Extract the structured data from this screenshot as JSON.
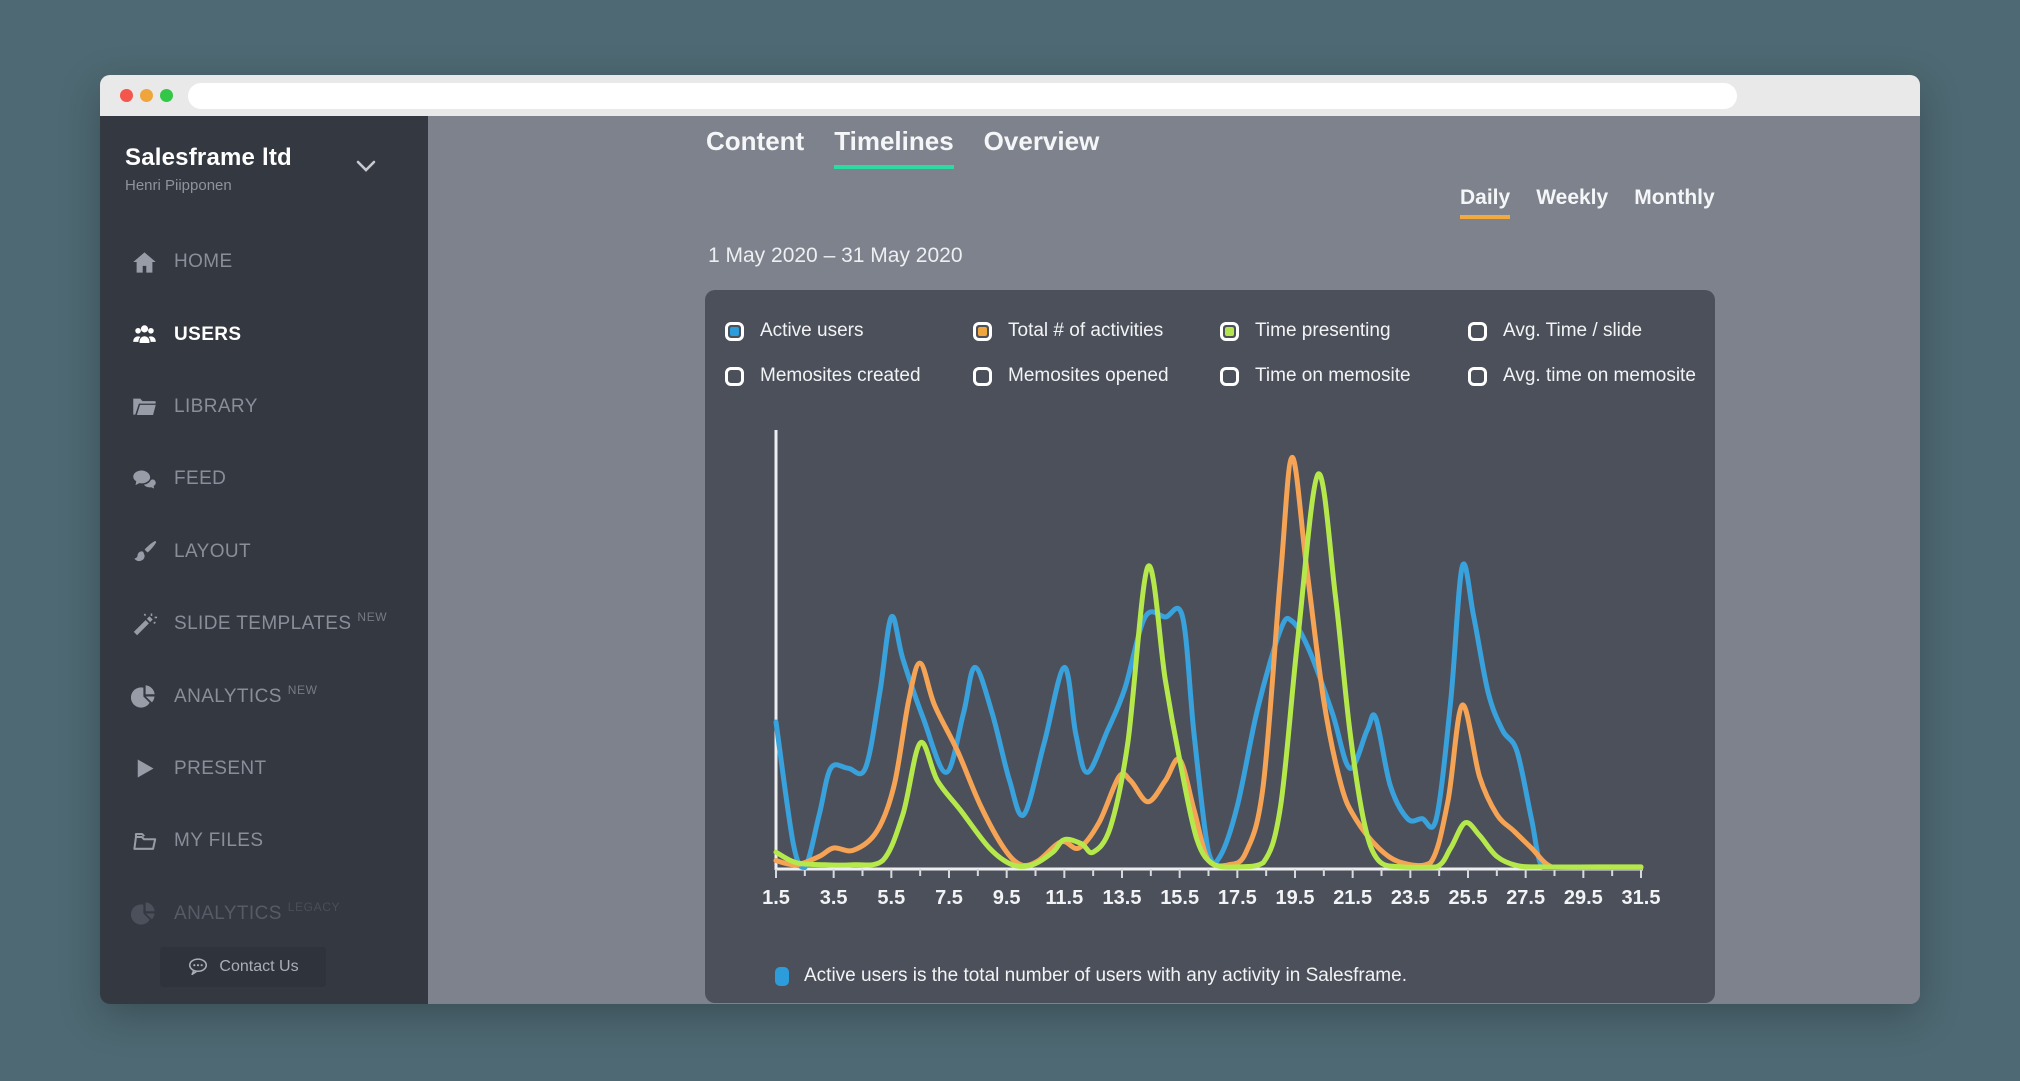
{
  "browser": {
    "url_value": ""
  },
  "sidebar": {
    "org_name": "Salesframe ltd",
    "user_name": "Henri Piipponen",
    "items": [
      {
        "label": "HOME",
        "icon": "home-icon",
        "active": false,
        "disabled": false,
        "badge": ""
      },
      {
        "label": "USERS",
        "icon": "users-icon",
        "active": true,
        "disabled": false,
        "badge": ""
      },
      {
        "label": "LIBRARY",
        "icon": "library-icon",
        "active": false,
        "disabled": false,
        "badge": ""
      },
      {
        "label": "FEED",
        "icon": "feed-icon",
        "active": false,
        "disabled": false,
        "badge": ""
      },
      {
        "label": "LAYOUT",
        "icon": "paintbrush-icon",
        "active": false,
        "disabled": false,
        "badge": ""
      },
      {
        "label": "SLIDE TEMPLATES",
        "icon": "magic-wand-icon",
        "active": false,
        "disabled": false,
        "badge": "NEW"
      },
      {
        "label": "ANALYTICS",
        "icon": "pie-chart-icon",
        "active": false,
        "disabled": false,
        "badge": "NEW"
      },
      {
        "label": "PRESENT",
        "icon": "play-icon",
        "active": false,
        "disabled": false,
        "badge": ""
      },
      {
        "label": "MY FILES",
        "icon": "folder-outline-icon",
        "active": false,
        "disabled": false,
        "badge": ""
      },
      {
        "label": "ANALYTICS",
        "icon": "pie-chart-icon",
        "active": false,
        "disabled": true,
        "badge": "LEGACY"
      }
    ],
    "contact_button_label": "Contact Us"
  },
  "header": {
    "tabs": [
      {
        "label": "Content",
        "active": false
      },
      {
        "label": "Timelines",
        "active": true
      },
      {
        "label": "Overview",
        "active": false
      }
    ],
    "period_tabs": [
      {
        "label": "Daily",
        "active": true
      },
      {
        "label": "Weekly",
        "active": false
      },
      {
        "label": "Monthly",
        "active": false
      }
    ],
    "date_range": "1 May 2020 – 31 May 2020"
  },
  "legend": {
    "options": [
      {
        "label": "Active users",
        "checked": true,
        "color": "#2D9CDB"
      },
      {
        "label": "Total # of activities",
        "checked": true,
        "color": "#F0A63E"
      },
      {
        "label": "Time presenting",
        "checked": true,
        "color": "#B2E44C"
      },
      {
        "label": "Avg. Time / slide",
        "checked": false,
        "color": ""
      },
      {
        "label": "Memosites created",
        "checked": false,
        "color": ""
      },
      {
        "label": "Memosites opened",
        "checked": false,
        "color": ""
      },
      {
        "label": "Time on memosite",
        "checked": false,
        "color": ""
      },
      {
        "label": "Avg. time on memosite",
        "checked": false,
        "color": ""
      }
    ]
  },
  "note": {
    "text": "Active users is the total number of users with any activity in Salesframe.",
    "swatch_color": "#2D9CDB"
  },
  "colors": {
    "tab_underline": "#2BDBA1",
    "period_underline": "#F2A93E",
    "axis": "#EDEEF0",
    "tick_label": "#F2F3F5"
  },
  "chart_data": {
    "type": "line",
    "title": "",
    "xlabel": "",
    "ylabel": "",
    "x_range": [
      1.5,
      31.5
    ],
    "y_range": [
      0,
      100
    ],
    "x_ticks": [
      1.5,
      3.5,
      5.5,
      7.5,
      9.5,
      11.5,
      13.5,
      15.5,
      17.5,
      19.5,
      21.5,
      23.5,
      25.5,
      27.5,
      29.5,
      31.5
    ],
    "x_minor_tick_step": 1,
    "grid": false,
    "legend_position": "top",
    "series": [
      {
        "name": "Active users",
        "color": "#39A1DB",
        "points": [
          [
            1.5,
            35
          ],
          [
            2.1,
            6
          ],
          [
            2.5,
            0
          ],
          [
            3,
            13
          ],
          [
            3.4,
            24
          ],
          [
            4,
            24
          ],
          [
            4.6,
            24
          ],
          [
            5.1,
            42
          ],
          [
            5.5,
            60
          ],
          [
            5.9,
            50
          ],
          [
            6.6,
            36
          ],
          [
            7.4,
            23
          ],
          [
            8,
            37
          ],
          [
            8.4,
            48
          ],
          [
            9,
            37
          ],
          [
            9.6,
            21
          ],
          [
            10.1,
            13
          ],
          [
            10.8,
            30
          ],
          [
            11.5,
            48
          ],
          [
            11.9,
            32
          ],
          [
            12.3,
            23
          ],
          [
            13,
            33
          ],
          [
            13.6,
            43
          ],
          [
            14.3,
            60
          ],
          [
            15,
            60
          ],
          [
            15.6,
            60
          ],
          [
            16,
            32
          ],
          [
            16.5,
            4
          ],
          [
            16.9,
            3
          ],
          [
            17.5,
            15
          ],
          [
            18.2,
            38
          ],
          [
            19,
            57
          ],
          [
            19.4,
            59
          ],
          [
            20,
            52
          ],
          [
            20.8,
            37
          ],
          [
            21.4,
            24
          ],
          [
            22,
            33
          ],
          [
            22.3,
            36
          ],
          [
            22.8,
            20
          ],
          [
            23.4,
            12
          ],
          [
            23.9,
            12
          ],
          [
            24.4,
            12
          ],
          [
            24.9,
            40
          ],
          [
            25.3,
            72
          ],
          [
            25.7,
            60
          ],
          [
            26.2,
            42
          ],
          [
            26.7,
            33
          ],
          [
            27.2,
            28
          ],
          [
            27.7,
            12
          ],
          [
            28.1,
            0
          ],
          [
            29,
            0
          ],
          [
            30.2,
            0
          ],
          [
            31.5,
            0
          ]
        ]
      },
      {
        "name": "Total # of activities",
        "color": "#F5A355",
        "points": [
          [
            1.5,
            2
          ],
          [
            2.2,
            1
          ],
          [
            3,
            3
          ],
          [
            3.5,
            5
          ],
          [
            4.2,
            4.5
          ],
          [
            5,
            9
          ],
          [
            5.6,
            20
          ],
          [
            6.1,
            40
          ],
          [
            6.5,
            49
          ],
          [
            7,
            39
          ],
          [
            7.8,
            28
          ],
          [
            8.6,
            15
          ],
          [
            9.4,
            5
          ],
          [
            10,
            1
          ],
          [
            10.6,
            2
          ],
          [
            11.4,
            6.5
          ],
          [
            12,
            5
          ],
          [
            12.7,
            11
          ],
          [
            13.4,
            22
          ],
          [
            13.8,
            21
          ],
          [
            14.4,
            16
          ],
          [
            15,
            21
          ],
          [
            15.5,
            26
          ],
          [
            16,
            14
          ],
          [
            16.5,
            2
          ],
          [
            17.2,
            1
          ],
          [
            17.8,
            4
          ],
          [
            18.4,
            20
          ],
          [
            19,
            70
          ],
          [
            19.4,
            98
          ],
          [
            19.9,
            72
          ],
          [
            20.5,
            40
          ],
          [
            21.1,
            20
          ],
          [
            21.6,
            12
          ],
          [
            22.4,
            5
          ],
          [
            23.2,
            1.5
          ],
          [
            24.2,
            1.5
          ],
          [
            24.8,
            16
          ],
          [
            25.3,
            39
          ],
          [
            25.9,
            22
          ],
          [
            26.5,
            13
          ],
          [
            27.1,
            9
          ],
          [
            27.7,
            5
          ],
          [
            28.4,
            0.5
          ],
          [
            29.5,
            0.3
          ],
          [
            31.5,
            0.3
          ]
        ]
      },
      {
        "name": "Time presenting",
        "color": "#B5E84B",
        "points": [
          [
            1.5,
            4
          ],
          [
            2.2,
            1.5
          ],
          [
            3.2,
            1
          ],
          [
            4.2,
            1
          ],
          [
            5.2,
            2
          ],
          [
            5.9,
            13
          ],
          [
            6.5,
            30
          ],
          [
            7.1,
            21
          ],
          [
            7.9,
            14
          ],
          [
            8.9,
            5
          ],
          [
            9.7,
            1
          ],
          [
            10.4,
            1
          ],
          [
            11.1,
            4
          ],
          [
            11.5,
            7
          ],
          [
            12.1,
            6
          ],
          [
            12.5,
            4
          ],
          [
            13.1,
            10
          ],
          [
            13.7,
            30
          ],
          [
            14.4,
            72
          ],
          [
            15,
            45
          ],
          [
            15.5,
            26
          ],
          [
            16.1,
            7
          ],
          [
            16.7,
            1
          ],
          [
            17.5,
            0.5
          ],
          [
            18.4,
            1.5
          ],
          [
            19,
            15
          ],
          [
            19.6,
            55
          ],
          [
            20.3,
            94
          ],
          [
            20.9,
            65
          ],
          [
            21.4,
            33
          ],
          [
            21.9,
            11
          ],
          [
            22.4,
            2
          ],
          [
            23.2,
            0.5
          ],
          [
            24.4,
            0.5
          ],
          [
            24.9,
            5
          ],
          [
            25.4,
            11
          ],
          [
            25.9,
            8
          ],
          [
            26.5,
            3
          ],
          [
            27.2,
            0.8
          ],
          [
            28,
            0.5
          ],
          [
            30,
            0.5
          ],
          [
            31.5,
            0.5
          ]
        ]
      }
    ]
  }
}
